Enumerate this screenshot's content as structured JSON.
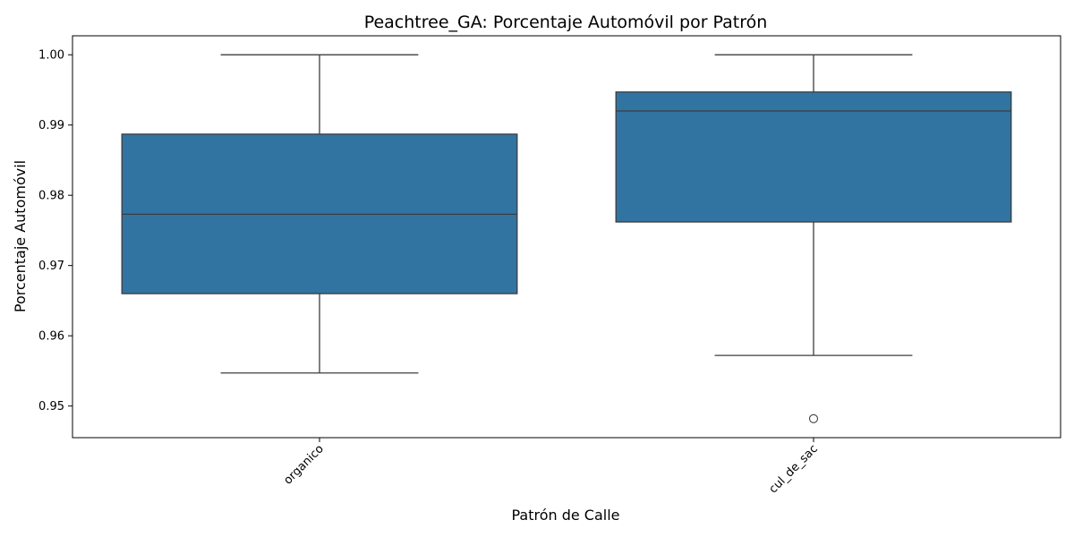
{
  "chart_data": {
    "type": "box",
    "title": "Peachtree_GA: Porcentaje Automóvil por Patrón",
    "xlabel": "Patrón de Calle",
    "ylabel": "Porcentaje Automóvil",
    "ylim": [
      0.9455,
      1.0027
    ],
    "yticks": [
      0.95,
      0.96,
      0.97,
      0.98,
      0.99,
      1.0
    ],
    "ytick_labels": [
      "0.95",
      "0.96",
      "0.97",
      "0.98",
      "0.99",
      "1.00"
    ],
    "categories": [
      "organico",
      "cul_de_sac"
    ],
    "boxes": [
      {
        "category": "organico",
        "whisker_low": 0.9547,
        "q1": 0.966,
        "median": 0.9773,
        "q3": 0.9887,
        "whisker_high": 1.0,
        "outliers": []
      },
      {
        "category": "cul_de_sac",
        "whisker_low": 0.9572,
        "q1": 0.9762,
        "median": 0.992,
        "q3": 0.9947,
        "whisker_high": 1.0,
        "outliers": [
          0.9482
        ]
      }
    ],
    "box_color": "#3274a1",
    "line_color": "#3d3d3d",
    "grid": false,
    "x_tick_rotation": 45
  }
}
